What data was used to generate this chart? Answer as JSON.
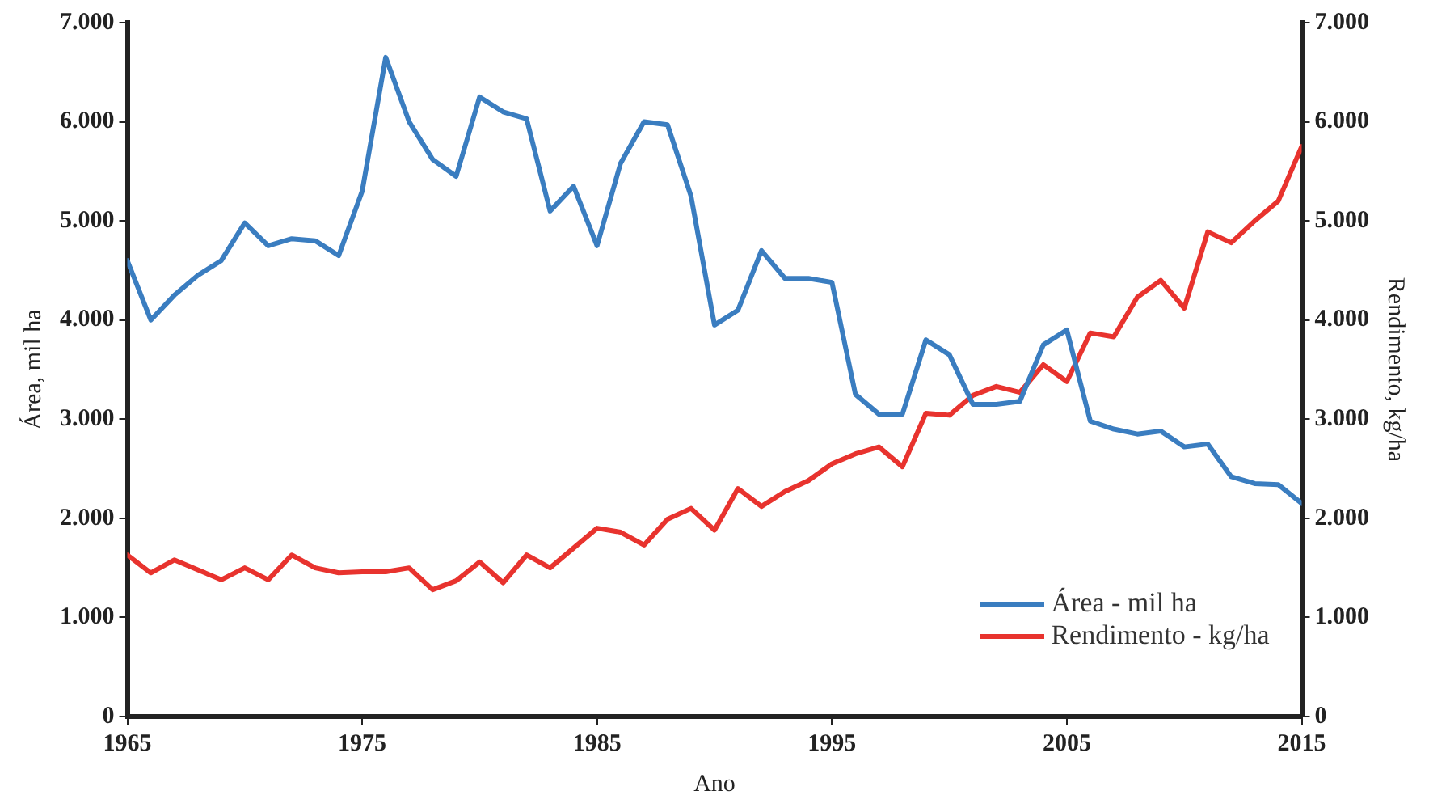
{
  "chart_data": {
    "type": "line",
    "xlabel": "Ano",
    "ylabel": "Área, mil ha",
    "y2label": "Rendimento, kg/ha",
    "x": [
      1965,
      1966,
      1967,
      1968,
      1969,
      1970,
      1971,
      1972,
      1973,
      1974,
      1975,
      1976,
      1977,
      1978,
      1979,
      1980,
      1981,
      1982,
      1983,
      1984,
      1985,
      1986,
      1987,
      1988,
      1989,
      1990,
      1991,
      1992,
      1993,
      1994,
      1995,
      1996,
      1997,
      1998,
      1999,
      2000,
      2001,
      2002,
      2003,
      2004,
      2005,
      2006,
      2007,
      2008,
      2009,
      2010,
      2011,
      2012,
      2013,
      2014,
      2015
    ],
    "series": [
      {
        "name": "Área - mil ha",
        "color": "#3a7dc0",
        "values": [
          4600,
          4000,
          4250,
          4450,
          4600,
          4980,
          4750,
          4820,
          4800,
          4650,
          5300,
          6650,
          6000,
          5620,
          5450,
          6250,
          6100,
          6030,
          5100,
          5350,
          4750,
          5580,
          6000,
          5970,
          5250,
          3950,
          4100,
          4700,
          4420,
          4420,
          4380,
          3250,
          3050,
          3050,
          3800,
          3650,
          3150,
          3150,
          3180,
          3750,
          3900,
          2980,
          2900,
          2850,
          2880,
          2720,
          2750,
          2420,
          2350,
          2340,
          2150
        ]
      },
      {
        "name": "Rendimento - kg/ha",
        "color": "#e8332e",
        "axis": "y2",
        "values": [
          1630,
          1450,
          1580,
          1480,
          1380,
          1500,
          1380,
          1630,
          1500,
          1450,
          1460,
          1460,
          1500,
          1280,
          1370,
          1560,
          1350,
          1630,
          1500,
          1700,
          1900,
          1860,
          1730,
          1990,
          2100,
          1880,
          2300,
          2120,
          2270,
          2380,
          2550,
          2650,
          2720,
          2520,
          3060,
          3040,
          3240,
          3330,
          3270,
          3550,
          3380,
          3870,
          3830,
          4230,
          4400,
          4120,
          4890,
          4780,
          5000,
          5200,
          5750
        ]
      }
    ],
    "xlim": [
      1965,
      2015
    ],
    "xticks": [
      1965,
      1975,
      1985,
      1995,
      2005,
      2015
    ],
    "ylim": [
      0,
      7000
    ],
    "yticks": [
      {
        "value": 0,
        "label": "0"
      },
      {
        "value": 1000,
        "label": "1.000"
      },
      {
        "value": 2000,
        "label": "2.000"
      },
      {
        "value": 3000,
        "label": "3.000"
      },
      {
        "value": 4000,
        "label": "4.000"
      },
      {
        "value": 5000,
        "label": "5.000"
      },
      {
        "value": 6000,
        "label": "6.000"
      },
      {
        "value": 7000,
        "label": "7.000"
      }
    ],
    "y2lim": [
      0,
      7000
    ],
    "y2ticks": [
      {
        "value": 0,
        "label": "0"
      },
      {
        "value": 1000,
        "label": "1.000"
      },
      {
        "value": 2000,
        "label": "2.000"
      },
      {
        "value": 3000,
        "label": "3.000"
      },
      {
        "value": 4000,
        "label": "4.000"
      },
      {
        "value": 5000,
        "label": "5.000"
      },
      {
        "value": 6000,
        "label": "6.000"
      },
      {
        "value": 7000,
        "label": "7.000"
      }
    ],
    "grid": false,
    "legend": "bottom right",
    "marker": "none",
    "line_style": "solid"
  }
}
